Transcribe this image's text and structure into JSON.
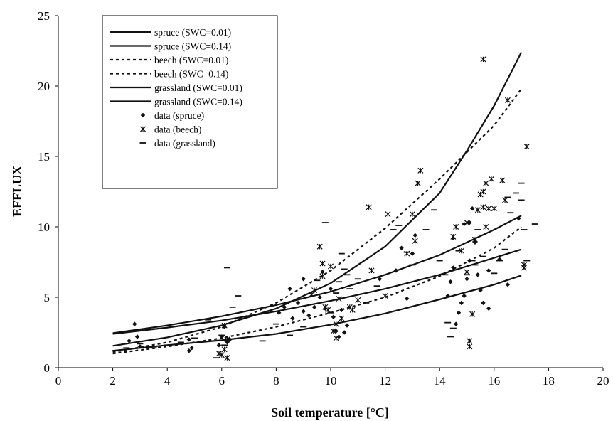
{
  "chart_data": {
    "type": "scatter",
    "title": "",
    "xlabel": "Soil temperature  [°C]",
    "ylabel": "EFFLUX",
    "xlim": [
      0,
      20
    ],
    "ylim": [
      0,
      25
    ],
    "xticks": [
      0,
      2,
      4,
      6,
      8,
      10,
      12,
      14,
      16,
      18,
      20
    ],
    "yticks": [
      0,
      5,
      10,
      15,
      20,
      25
    ],
    "grid": false,
    "legend_position": "top-left",
    "lines": [
      {
        "name": "spruce (SWC=0.01)",
        "style": "solid",
        "x": [
          2,
          4,
          6,
          8,
          10,
          12,
          14,
          15,
          16,
          17
        ],
        "y": [
          1.55,
          2.15,
          3.0,
          4.2,
          6.0,
          8.6,
          12.4,
          15.4,
          18.6,
          22.4
        ]
      },
      {
        "name": "spruce (SWC=0.14)",
        "style": "solid",
        "x": [
          2,
          4,
          6,
          8,
          10,
          12,
          14,
          16,
          17
        ],
        "y": [
          1.2,
          1.6,
          1.95,
          2.4,
          3.05,
          3.85,
          4.85,
          5.9,
          6.55
        ]
      },
      {
        "name": "beech (SWC=0.01)",
        "style": "dashed",
        "x": [
          2,
          4,
          6,
          8,
          10,
          12,
          14,
          16,
          17
        ],
        "y": [
          1.1,
          1.8,
          2.9,
          4.6,
          6.9,
          9.9,
          13.4,
          17.2,
          19.8
        ]
      },
      {
        "name": "beech (SWC=0.14)",
        "style": "dashed",
        "x": [
          2,
          4,
          6,
          8,
          10,
          12,
          14,
          16,
          17
        ],
        "y": [
          1.0,
          1.5,
          2.1,
          2.9,
          3.9,
          5.0,
          6.5,
          8.5,
          10.0
        ]
      },
      {
        "name": "grassland (SWC=0.01)",
        "style": "solid",
        "x": [
          2,
          4,
          6,
          8,
          10,
          12,
          14,
          16,
          17
        ],
        "y": [
          2.45,
          3.0,
          3.65,
          4.45,
          5.4,
          6.6,
          8.0,
          9.8,
          10.8
        ]
      },
      {
        "name": "grassland (SWC=0.14)",
        "style": "solid",
        "x": [
          2,
          4,
          6,
          8,
          10,
          12,
          14,
          16,
          17
        ],
        "y": [
          2.4,
          2.85,
          3.35,
          4.0,
          4.75,
          5.6,
          6.6,
          7.8,
          8.4
        ]
      }
    ],
    "series": [
      {
        "name": "data (spruce)",
        "marker": "diamond",
        "points": [
          [
            2.8,
            3.1
          ],
          [
            2.6,
            1.9
          ],
          [
            2.9,
            2.2
          ],
          [
            3.0,
            1.5
          ],
          [
            4.8,
            1.2
          ],
          [
            4.9,
            1.4
          ],
          [
            4.8,
            2.0
          ],
          [
            5.9,
            1.6
          ],
          [
            6.0,
            2.2
          ],
          [
            6.1,
            2.9
          ],
          [
            6.2,
            1.8
          ],
          [
            6.3,
            2.0
          ],
          [
            8.1,
            3.9
          ],
          [
            8.3,
            4.3
          ],
          [
            8.6,
            3.5
          ],
          [
            8.8,
            4.6
          ],
          [
            9.0,
            4.0
          ],
          [
            9.2,
            3.7
          ],
          [
            9.4,
            4.3
          ],
          [
            9.6,
            5.0
          ],
          [
            9.8,
            4.2
          ],
          [
            10.0,
            5.6
          ],
          [
            10.1,
            3.6
          ],
          [
            10.2,
            2.6
          ],
          [
            10.3,
            2.2
          ],
          [
            10.4,
            4.1
          ],
          [
            10.5,
            2.5
          ],
          [
            10.6,
            3.0
          ],
          [
            8.5,
            5.6
          ],
          [
            9.0,
            6.3
          ],
          [
            9.7,
            6.8
          ],
          [
            11.8,
            6.3
          ],
          [
            12.4,
            6.9
          ],
          [
            12.6,
            8.5
          ],
          [
            12.8,
            4.9
          ],
          [
            13.0,
            8.1
          ],
          [
            13.1,
            9.4
          ],
          [
            14.3,
            5.1
          ],
          [
            14.4,
            6.1
          ],
          [
            14.5,
            7.1
          ],
          [
            14.5,
            9.2
          ],
          [
            14.6,
            3.1
          ],
          [
            14.7,
            3.9
          ],
          [
            14.8,
            4.6
          ],
          [
            14.9,
            5.1
          ],
          [
            15.0,
            6.3
          ],
          [
            15.1,
            7.6
          ],
          [
            15.1,
            10.3
          ],
          [
            15.2,
            11.3
          ],
          [
            15.3,
            8.9
          ],
          [
            15.4,
            6.6
          ],
          [
            15.5,
            5.5
          ],
          [
            15.6,
            4.6
          ],
          [
            15.8,
            6.9
          ],
          [
            15.8,
            4.2
          ],
          [
            16.2,
            7.7
          ],
          [
            16.5,
            5.9
          ],
          [
            16.9,
            10.6
          ],
          [
            14.9,
            10.2
          ]
        ]
      },
      {
        "name": "data (beech)",
        "marker": "asterisk",
        "points": [
          [
            5.9,
            1.0
          ],
          [
            6.0,
            0.9
          ],
          [
            6.1,
            1.3
          ],
          [
            6.2,
            0.7
          ],
          [
            6.1,
            3.0
          ],
          [
            6.2,
            2.0
          ],
          [
            9.3,
            5.2
          ],
          [
            9.4,
            5.5
          ],
          [
            9.6,
            8.6
          ],
          [
            9.7,
            6.5
          ],
          [
            9.7,
            7.4
          ],
          [
            9.8,
            4.3
          ],
          [
            9.9,
            4.1
          ],
          [
            10.0,
            7.2
          ],
          [
            10.1,
            2.6
          ],
          [
            10.2,
            2.1
          ],
          [
            10.2,
            3.1
          ],
          [
            10.3,
            4.9
          ],
          [
            10.4,
            3.5
          ],
          [
            10.7,
            4.3
          ],
          [
            10.8,
            4.1
          ],
          [
            11.0,
            4.8
          ],
          [
            11.4,
            11.4
          ],
          [
            11.5,
            6.9
          ],
          [
            12.0,
            5.1
          ],
          [
            12.1,
            10.9
          ],
          [
            12.8,
            8.1
          ],
          [
            13.0,
            10.9
          ],
          [
            13.1,
            9.0
          ],
          [
            13.2,
            13.1
          ],
          [
            13.3,
            14.0
          ],
          [
            14.5,
            9.3
          ],
          [
            14.6,
            10.0
          ],
          [
            14.8,
            8.3
          ],
          [
            15.0,
            10.3
          ],
          [
            15.0,
            6.8
          ],
          [
            15.1,
            1.9
          ],
          [
            15.1,
            1.5
          ],
          [
            15.2,
            3.8
          ],
          [
            15.3,
            9.1
          ],
          [
            15.4,
            11.2
          ],
          [
            15.5,
            12.3
          ],
          [
            15.6,
            11.4
          ],
          [
            15.6,
            12.5
          ],
          [
            15.6,
            21.9
          ],
          [
            15.7,
            13.1
          ],
          [
            15.8,
            11.3
          ],
          [
            15.7,
            10.0
          ],
          [
            15.9,
            13.4
          ],
          [
            16.0,
            11.3
          ],
          [
            16.3,
            13.3
          ],
          [
            16.5,
            19.0
          ],
          [
            17.1,
            7.3
          ],
          [
            17.1,
            7.1
          ],
          [
            17.2,
            15.7
          ],
          [
            16.4,
            11.9
          ]
        ]
      },
      {
        "name": "data (grassland)",
        "marker": "dash",
        "points": [
          [
            2.1,
            1.2
          ],
          [
            2.5,
            1.4
          ],
          [
            3.0,
            1.7
          ],
          [
            3.5,
            1.4
          ],
          [
            4.0,
            1.6
          ],
          [
            4.5,
            1.8
          ],
          [
            5.0,
            2.1
          ],
          [
            5.5,
            3.4
          ],
          [
            5.8,
            0.7
          ],
          [
            6.0,
            2.3
          ],
          [
            6.1,
            1.6
          ],
          [
            6.2,
            7.1
          ],
          [
            6.4,
            4.3
          ],
          [
            6.6,
            5.1
          ],
          [
            7.5,
            1.9
          ],
          [
            8.0,
            3.1
          ],
          [
            8.5,
            2.3
          ],
          [
            9.0,
            2.9
          ],
          [
            9.5,
            6.2
          ],
          [
            9.8,
            10.3
          ],
          [
            10.0,
            3.9
          ],
          [
            10.2,
            5.3
          ],
          [
            10.3,
            6.1
          ],
          [
            10.4,
            8.1
          ],
          [
            10.5,
            7.0
          ],
          [
            10.6,
            6.6
          ],
          [
            10.7,
            5.6
          ],
          [
            11.0,
            6.3
          ],
          [
            11.3,
            4.6
          ],
          [
            11.7,
            5.8
          ],
          [
            12.3,
            9.8
          ],
          [
            12.5,
            10.1
          ],
          [
            12.8,
            8.2
          ],
          [
            13.0,
            7.3
          ],
          [
            13.5,
            9.8
          ],
          [
            13.8,
            11.2
          ],
          [
            14.0,
            7.6
          ],
          [
            14.2,
            6.6
          ],
          [
            14.3,
            3.2
          ],
          [
            14.4,
            2.2
          ],
          [
            14.5,
            2.8
          ],
          [
            14.7,
            8.3
          ],
          [
            15.0,
            6.6
          ],
          [
            15.2,
            7.6
          ],
          [
            15.3,
            7.3
          ],
          [
            15.4,
            9.8
          ],
          [
            15.6,
            7.9
          ],
          [
            16.0,
            6.7
          ],
          [
            16.2,
            7.6
          ],
          [
            16.4,
            8.4
          ],
          [
            16.5,
            12.1
          ],
          [
            16.6,
            11.0
          ],
          [
            17.0,
            13.1
          ],
          [
            17.0,
            11.9
          ],
          [
            17.1,
            9.8
          ],
          [
            17.2,
            7.6
          ],
          [
            17.5,
            10.2
          ],
          [
            16.8,
            12.4
          ]
        ]
      }
    ]
  }
}
